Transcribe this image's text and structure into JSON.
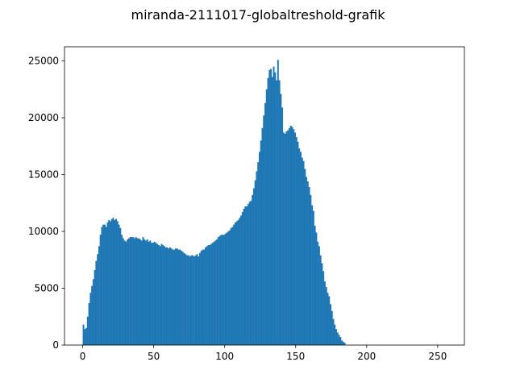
{
  "chart_data": {
    "type": "bar",
    "title": "miranda-2111017-globaltreshold-grafik",
    "xlabel": "",
    "ylabel": "",
    "xlim": [
      -12.8,
      268.8
    ],
    "ylim": [
      0,
      26250
    ],
    "x_ticks": [
      0,
      50,
      100,
      150,
      200,
      250
    ],
    "y_ticks": [
      0,
      5000,
      10000,
      15000,
      20000,
      25000
    ],
    "grid": false,
    "bin_width": 1,
    "bar_color": "#1f77b4",
    "bins_start": 0,
    "values": [
      1800,
      1400,
      1500,
      2500,
      3700,
      4600,
      5200,
      5800,
      6600,
      7400,
      8000,
      8700,
      9700,
      10400,
      10600,
      10600,
      10400,
      10800,
      11000,
      10900,
      11100,
      11200,
      11000,
      11100,
      10900,
      10600,
      10300,
      9700,
      9400,
      9200,
      9100,
      9300,
      9400,
      9500,
      9500,
      9500,
      9400,
      9500,
      9400,
      9400,
      9300,
      9200,
      9500,
      9300,
      9200,
      9300,
      9100,
      9200,
      9000,
      9000,
      9100,
      9000,
      8900,
      8800,
      8700,
      8900,
      8800,
      8700,
      8600,
      8600,
      8500,
      8600,
      8500,
      8400,
      8400,
      8500,
      8500,
      8400,
      8400,
      8300,
      8200,
      8100,
      8000,
      7900,
      7900,
      7800,
      7900,
      7900,
      7800,
      7900,
      8000,
      7800,
      8100,
      8300,
      8400,
      8400,
      8600,
      8700,
      8800,
      8800,
      8900,
      9000,
      9100,
      9200,
      9300,
      9500,
      9600,
      9700,
      9700,
      9700,
      9800,
      9900,
      10000,
      10100,
      10300,
      10400,
      10600,
      10800,
      10900,
      11000,
      11200,
      11400,
      11700,
      12000,
      12200,
      12200,
      12400,
      12600,
      12700,
      13200,
      13800,
      14500,
      15300,
      16100,
      17000,
      18000,
      19100,
      20200,
      21300,
      22500,
      23500,
      24200,
      24300,
      23600,
      24500,
      24000,
      23300,
      25100,
      23300,
      22100,
      20900,
      18700,
      18600,
      18800,
      18900,
      19100,
      19300,
      19200,
      19000,
      18700,
      18300,
      17900,
      17300,
      17000,
      16500,
      16200,
      15500,
      14800,
      14400,
      13900,
      13200,
      12300,
      11800,
      10500,
      9900,
      9100,
      8700,
      7900,
      7200,
      6500,
      5600,
      5100,
      4600,
      4300,
      3600,
      3000,
      2300,
      1800,
      1400,
      1100,
      900,
      700,
      400,
      300,
      200
    ]
  }
}
